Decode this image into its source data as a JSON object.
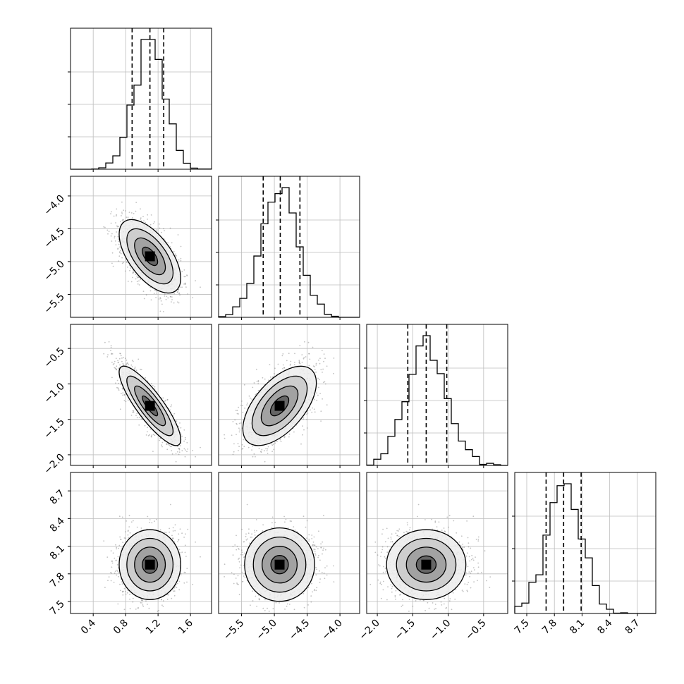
{
  "chart_data": {
    "type": "corner",
    "parameters": [
      {
        "ticks": [
          0.4,
          0.8,
          1.2,
          1.6
        ],
        "tick_labels": [
          "0.4",
          "0.8",
          "1.2",
          "1.6"
        ],
        "range": [
          0.12,
          1.86
        ],
        "quantiles": [
          0.88,
          1.1,
          1.27
        ],
        "mean": 1.1,
        "std": 0.19
      },
      {
        "ticks": [
          -5.5,
          -5.0,
          -4.5,
          -4.0
        ],
        "tick_labels": [
          "−5.5",
          "−5.0",
          "−4.5",
          "−4.0"
        ],
        "range": [
          -5.85,
          -3.7
        ],
        "quantiles": [
          -5.17,
          -4.91,
          -4.61
        ],
        "mean": -4.92,
        "std": 0.28
      },
      {
        "ticks": [
          -2.0,
          -1.5,
          -1.0,
          -0.5
        ],
        "tick_labels": [
          "−2.0",
          "−1.5",
          "−1.0",
          "−0.5"
        ],
        "range": [
          -2.15,
          -0.16
        ],
        "quantiles": [
          -1.57,
          -1.31,
          -1.02
        ],
        "mean": -1.31,
        "std": 0.28
      },
      {
        "ticks": [
          7.5,
          7.8,
          8.1,
          8.4,
          8.7
        ],
        "tick_labels": [
          "7.5",
          "7.8",
          "8.1",
          "8.4",
          "8.7"
        ],
        "range": [
          7.37,
          8.9
        ],
        "quantiles": [
          7.71,
          7.9,
          8.09
        ],
        "mean": 7.9,
        "std": 0.19
      }
    ],
    "correlations": {
      "0-1": -0.6,
      "0-2": -0.85,
      "1-2": 0.58,
      "0-3": 0.0,
      "1-3": 0.0,
      "2-3": 0.0
    },
    "hist_bins": 20,
    "grid": true,
    "title": "",
    "legend": "none"
  }
}
